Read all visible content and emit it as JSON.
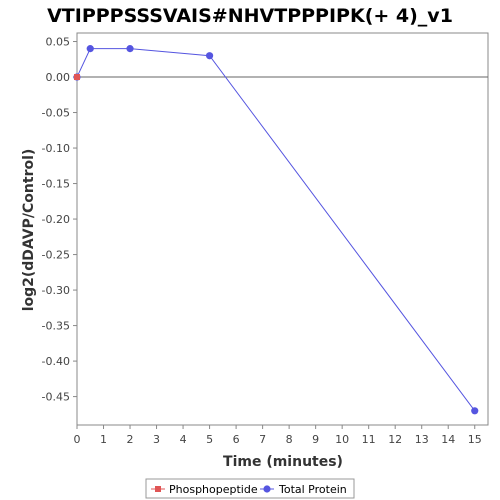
{
  "chart_data": {
    "type": "line",
    "title": "VTIPPPSSSVAIS#NHVTPPPIPK(+ 4)_v1",
    "xlabel": "Time (minutes)",
    "ylabel": "log2(dDAVP/Control)",
    "xlim": [
      0,
      15.5
    ],
    "ylim": [
      -0.49,
      0.062
    ],
    "x_ticks": [
      0,
      1,
      2,
      3,
      4,
      5,
      6,
      7,
      8,
      9,
      10,
      11,
      12,
      13,
      14,
      15
    ],
    "y_ticks": [
      0.05,
      0.0,
      -0.05,
      -0.1,
      -0.15,
      -0.2,
      -0.25,
      -0.3,
      -0.35,
      -0.4,
      -0.45
    ],
    "y_tick_labels": [
      "0.05",
      "0.00",
      "-0.05",
      "-0.10",
      "-0.15",
      "-0.20",
      "-0.25",
      "-0.30",
      "-0.35",
      "-0.40",
      "-0.45"
    ],
    "zero_line": true,
    "grid": false,
    "legend_position": "bottom",
    "series": [
      {
        "name": "Phosphopeptide",
        "color": "#e05555",
        "marker": "square",
        "x": [
          0
        ],
        "y": [
          0.0
        ]
      },
      {
        "name": "Total Protein",
        "color": "#5555e0",
        "marker": "circle",
        "x": [
          0,
          0.5,
          2,
          5,
          15
        ],
        "y": [
          0.0,
          0.04,
          0.04,
          0.03,
          -0.47
        ]
      }
    ]
  }
}
